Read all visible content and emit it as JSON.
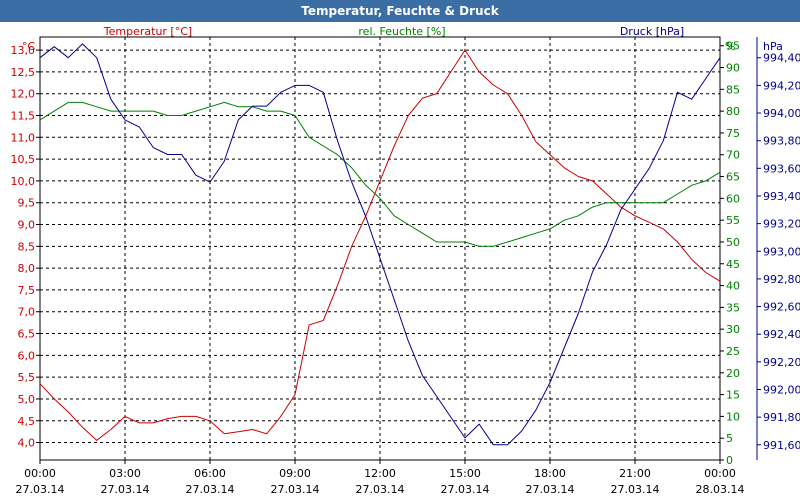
{
  "window": {
    "title": "Temperatur, Feuchte & Druck"
  },
  "chart_data": {
    "type": "line",
    "title": "Temperatur, Feuchte & Druck",
    "grid": true,
    "x_ticks": [
      {
        "time": "00:00",
        "date": "27.03.14"
      },
      {
        "time": "03:00",
        "date": "27.03.14"
      },
      {
        "time": "06:00",
        "date": "27.03.14"
      },
      {
        "time": "09:00",
        "date": "27.03.14"
      },
      {
        "time": "12:00",
        "date": "27.03.14"
      },
      {
        "time": "15:00",
        "date": "27.03.14"
      },
      {
        "time": "18:00",
        "date": "27.03.14"
      },
      {
        "time": "21:00",
        "date": "27.03.14"
      },
      {
        "time": "00:00",
        "date": "28.03.14"
      }
    ],
    "xlim": [
      0,
      24
    ],
    "axes": {
      "temperature": {
        "label": "Temperatur [°C]",
        "unit": "°C",
        "color": "#cc0000",
        "ylim": [
          3.6,
          13.3
        ],
        "ticks": [
          "4,0",
          "4,5",
          "5,0",
          "5,5",
          "6,0",
          "6,5",
          "7,0",
          "7,5",
          "8,0",
          "8,5",
          "9,0",
          "9,5",
          "10,0",
          "10,5",
          "11,0",
          "11,5",
          "12,0",
          "12,5",
          "13,0"
        ]
      },
      "humidity": {
        "label": "rel. Feuchte [%]",
        "unit": "%",
        "color": "#008000",
        "ylim": [
          0,
          97
        ],
        "ticks": [
          "0",
          "5",
          "10",
          "15",
          "20",
          "25",
          "30",
          "35",
          "40",
          "45",
          "50",
          "55",
          "60",
          "65",
          "70",
          "75",
          "80",
          "85",
          "90",
          "95"
        ]
      },
      "pressure": {
        "label": "Druck [hPa]",
        "unit": "hPa",
        "color": "#00008b",
        "ylim": [
          991.49,
          994.55
        ],
        "ticks": [
          "991,60",
          "991,80",
          "992,00",
          "992,20",
          "992,40",
          "992,60",
          "992,80",
          "993,00",
          "993,20",
          "993,40",
          "993,60",
          "993,80",
          "994,00",
          "994,20",
          "994,40"
        ]
      }
    },
    "series": [
      {
        "name": "Temperatur [°C]",
        "axis": "temperature",
        "color": "#cc0000",
        "x": [
          0,
          0.5,
          1,
          1.5,
          2,
          2.5,
          3,
          3.5,
          4,
          4.5,
          5,
          5.5,
          6,
          6.5,
          7,
          7.5,
          8,
          8.5,
          9,
          9.5,
          10,
          10.5,
          11,
          11.5,
          12,
          12.5,
          13,
          13.5,
          14,
          14.5,
          15,
          15.5,
          16,
          16.5,
          17,
          17.5,
          18,
          18.5,
          19,
          19.5,
          20,
          20.5,
          21,
          21.5,
          22,
          22.5,
          23,
          23.5,
          24
        ],
        "y": [
          5.35,
          5.0,
          4.7,
          4.35,
          4.05,
          4.3,
          4.6,
          4.45,
          4.45,
          4.55,
          4.6,
          4.6,
          4.5,
          4.2,
          4.25,
          4.3,
          4.2,
          4.6,
          5.1,
          6.7,
          6.8,
          7.6,
          8.5,
          9.2,
          10.0,
          10.8,
          11.5,
          11.9,
          12.0,
          12.5,
          13.0,
          12.5,
          12.2,
          12.0,
          11.5,
          10.9,
          10.6,
          10.3,
          10.1,
          10.0,
          9.7,
          9.4,
          9.2,
          9.05,
          8.9,
          8.6,
          8.2,
          7.9,
          7.7
        ]
      },
      {
        "name": "rel. Feuchte [%]",
        "axis": "humidity",
        "color": "#008000",
        "x": [
          0,
          0.5,
          1,
          1.5,
          2,
          2.5,
          3,
          3.5,
          4,
          4.5,
          5,
          5.5,
          6,
          6.5,
          7,
          7.5,
          8,
          8.5,
          9,
          9.5,
          10,
          10.5,
          11,
          11.5,
          12,
          12.5,
          13,
          13.5,
          14,
          14.5,
          15,
          15.5,
          16,
          16.5,
          17,
          17.5,
          18,
          18.5,
          19,
          19.5,
          20,
          20.5,
          21,
          21.5,
          22,
          22.5,
          23,
          23.5,
          24
        ],
        "y": [
          78,
          80,
          82,
          82,
          81,
          80,
          80,
          80,
          80,
          79,
          79,
          80,
          81,
          82,
          81,
          81,
          80,
          80,
          79,
          74,
          72,
          70,
          67,
          63,
          60,
          56,
          54,
          52,
          50,
          50,
          50,
          49,
          49,
          50,
          51,
          52,
          53,
          55,
          56,
          58,
          59,
          59,
          59,
          59,
          59,
          61,
          63,
          64,
          66
        ]
      },
      {
        "name": "Druck [hPa]",
        "axis": "pressure",
        "color": "#00008b",
        "x": [
          0,
          0.5,
          1,
          1.5,
          2,
          2.5,
          3,
          3.5,
          4,
          4.5,
          5,
          5.5,
          6,
          6.5,
          7,
          7.5,
          8,
          8.5,
          9,
          9.5,
          10,
          10.5,
          11,
          11.5,
          12,
          12.5,
          13,
          13.5,
          14,
          14.5,
          15,
          15.5,
          16,
          16.5,
          17,
          17.5,
          18,
          18.5,
          19,
          19.5,
          20,
          20.5,
          21,
          21.5,
          22,
          22.5,
          23,
          23.5,
          24
        ],
        "y": [
          994.4,
          994.48,
          994.4,
          994.5,
          994.4,
          994.1,
          993.95,
          993.9,
          993.75,
          993.7,
          993.7,
          993.55,
          993.5,
          993.65,
          993.95,
          994.05,
          994.05,
          994.15,
          994.2,
          994.2,
          994.15,
          993.8,
          993.5,
          993.25,
          992.95,
          992.65,
          992.35,
          992.1,
          991.95,
          991.8,
          991.65,
          991.75,
          991.6,
          991.6,
          991.7,
          991.85,
          992.05,
          992.3,
          992.55,
          992.85,
          993.05,
          993.3,
          993.45,
          993.6,
          993.8,
          994.15,
          994.1,
          994.25,
          994.4
        ]
      }
    ]
  }
}
